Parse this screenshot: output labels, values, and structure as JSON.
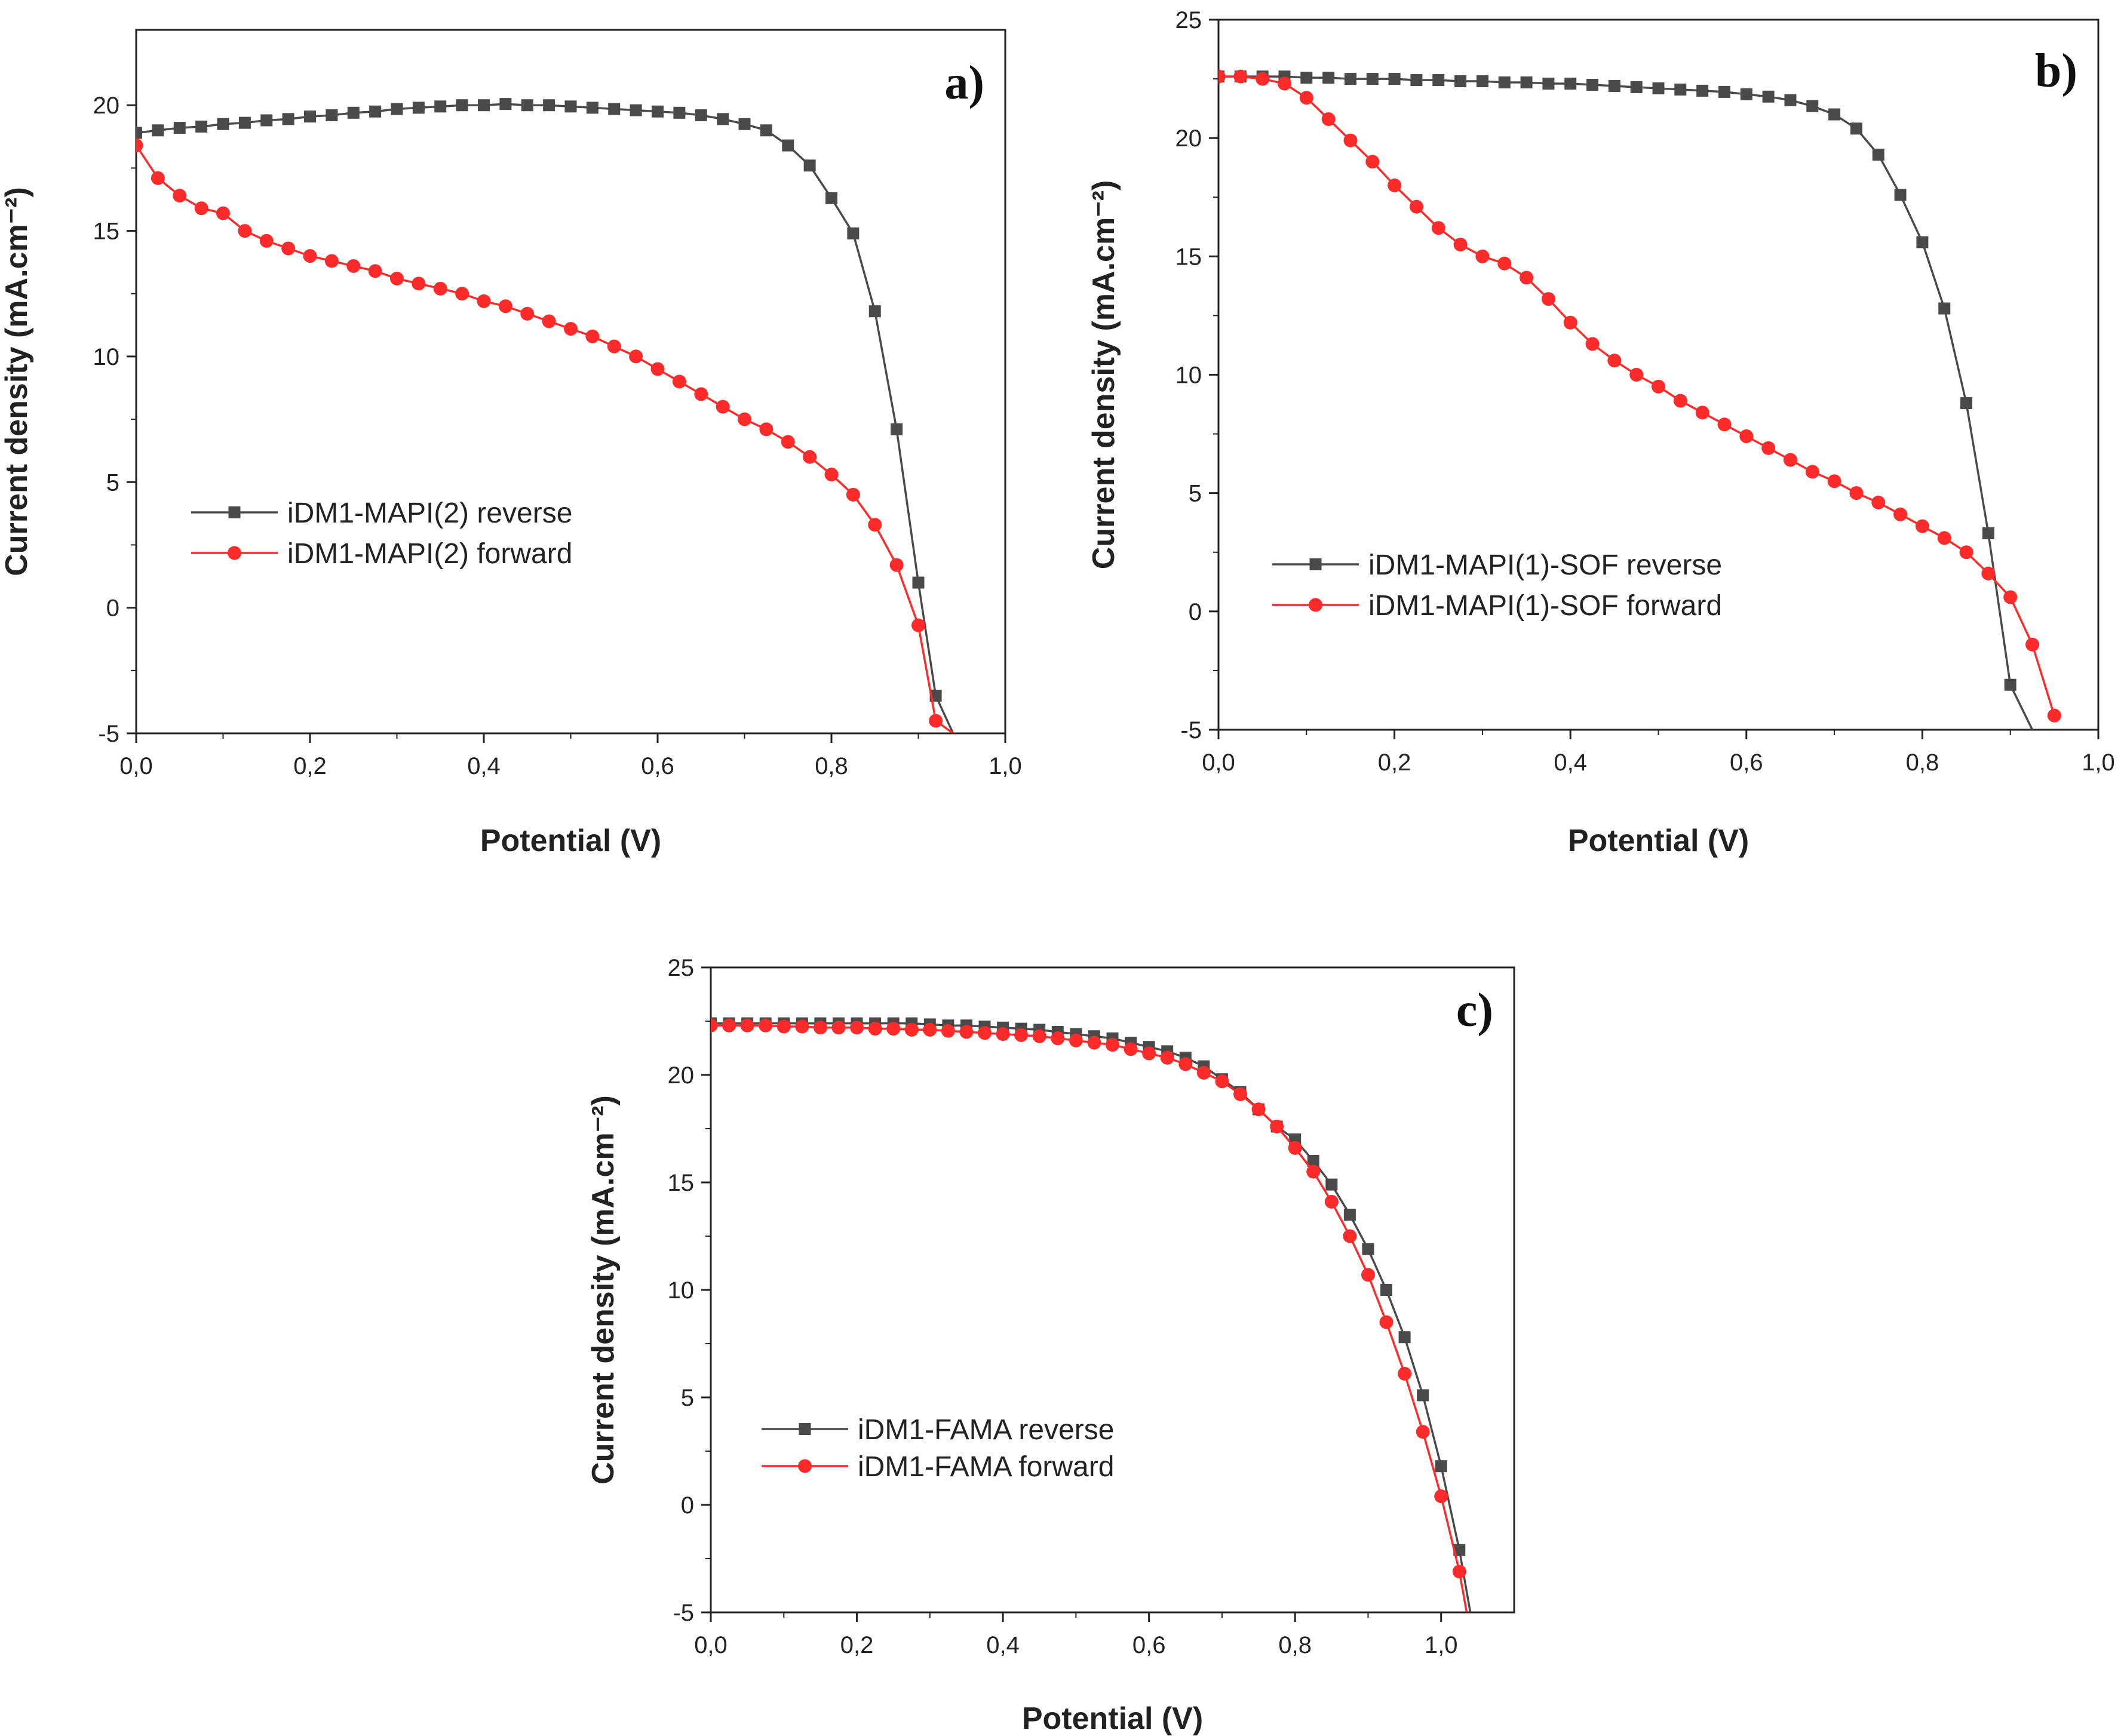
{
  "figure": {
    "colors": {
      "reverse": "#4a4a4a",
      "forward": "#ff2a2a",
      "axis": "#222222"
    },
    "markers": {
      "reverse": "square",
      "forward": "circle"
    }
  },
  "chart_data": [
    {
      "type": "line",
      "panel": "a)",
      "xlabel": "Potential (V)",
      "ylabel": "Current density (mA.cm⁻²)",
      "xlim": [
        0,
        1.0
      ],
      "ylim": [
        -5,
        23
      ],
      "xticks": [
        0,
        0.2,
        0.4,
        0.6,
        0.8,
        1.0
      ],
      "xtick_labels": [
        "0,0",
        "0,2",
        "0,4",
        "0,6",
        "0,8",
        "1,0"
      ],
      "yticks": [
        -5,
        0,
        5,
        10,
        15,
        20
      ],
      "ytick_labels": [
        "-5",
        "0",
        "5",
        "10",
        "15",
        "20"
      ],
      "legend_position": "left",
      "series": [
        {
          "name": "iDM1-MAPI(2) reverse",
          "marker": "square",
          "x": [
            0.0,
            0.025,
            0.05,
            0.075,
            0.1,
            0.125,
            0.15,
            0.175,
            0.2,
            0.225,
            0.25,
            0.275,
            0.3,
            0.325,
            0.35,
            0.375,
            0.4,
            0.425,
            0.45,
            0.475,
            0.5,
            0.525,
            0.55,
            0.575,
            0.6,
            0.625,
            0.65,
            0.675,
            0.7,
            0.725,
            0.75,
            0.775,
            0.8,
            0.825,
            0.85,
            0.875,
            0.9,
            0.92,
            0.94
          ],
          "y": [
            18.9,
            19.0,
            19.1,
            19.15,
            19.25,
            19.3,
            19.4,
            19.45,
            19.55,
            19.6,
            19.7,
            19.75,
            19.85,
            19.9,
            19.95,
            20.0,
            20.0,
            20.05,
            20.0,
            20.0,
            19.95,
            19.9,
            19.85,
            19.8,
            19.75,
            19.7,
            19.6,
            19.45,
            19.25,
            19.0,
            18.4,
            17.6,
            16.3,
            14.9,
            11.8,
            7.1,
            1.0,
            -3.5,
            -5.0
          ]
        },
        {
          "name": "iDM1-MAPI(2) forward",
          "marker": "circle",
          "x": [
            0.0,
            0.025,
            0.05,
            0.075,
            0.1,
            0.125,
            0.15,
            0.175,
            0.2,
            0.225,
            0.25,
            0.275,
            0.3,
            0.325,
            0.35,
            0.375,
            0.4,
            0.425,
            0.45,
            0.475,
            0.5,
            0.525,
            0.55,
            0.575,
            0.6,
            0.625,
            0.65,
            0.675,
            0.7,
            0.725,
            0.75,
            0.775,
            0.8,
            0.825,
            0.85,
            0.875,
            0.9,
            0.92,
            0.94
          ],
          "y": [
            18.4,
            17.1,
            16.4,
            15.9,
            15.7,
            15.0,
            14.6,
            14.3,
            14.0,
            13.8,
            13.6,
            13.4,
            13.1,
            12.9,
            12.7,
            12.5,
            12.2,
            12.0,
            11.7,
            11.4,
            11.1,
            10.8,
            10.4,
            10.0,
            9.5,
            9.0,
            8.5,
            8.0,
            7.5,
            7.1,
            6.6,
            6.0,
            5.3,
            4.5,
            3.3,
            1.7,
            -0.7,
            -4.5,
            -5.0
          ]
        }
      ]
    },
    {
      "type": "line",
      "panel": "b)",
      "xlabel": "Potential (V)",
      "ylabel": "Current density (mA.cm⁻²)",
      "xlim": [
        0,
        1.0
      ],
      "ylim": [
        -5,
        25
      ],
      "xticks": [
        0,
        0.2,
        0.4,
        0.6,
        0.8,
        1.0
      ],
      "xtick_labels": [
        "0,0",
        "0,2",
        "0,4",
        "0,6",
        "0,8",
        "1,0"
      ],
      "yticks": [
        -5,
        0,
        5,
        10,
        15,
        20,
        25
      ],
      "ytick_labels": [
        "-5",
        "0",
        "5",
        "10",
        "15",
        "20",
        "25"
      ],
      "legend_position": "bottom-left",
      "series": [
        {
          "name": "iDM1-MAPI(1)-SOF reverse",
          "marker": "square",
          "x": [
            0.0,
            0.025,
            0.05,
            0.075,
            0.1,
            0.125,
            0.15,
            0.175,
            0.2,
            0.225,
            0.25,
            0.275,
            0.3,
            0.325,
            0.35,
            0.375,
            0.4,
            0.425,
            0.45,
            0.475,
            0.5,
            0.525,
            0.55,
            0.575,
            0.6,
            0.625,
            0.65,
            0.675,
            0.7,
            0.725,
            0.75,
            0.775,
            0.8,
            0.825,
            0.85,
            0.875,
            0.9,
            0.925
          ],
          "y": [
            22.6,
            22.6,
            22.6,
            22.6,
            22.55,
            22.55,
            22.5,
            22.5,
            22.5,
            22.45,
            22.45,
            22.4,
            22.4,
            22.35,
            22.35,
            22.3,
            22.3,
            22.25,
            22.2,
            22.15,
            22.1,
            22.05,
            22.0,
            21.95,
            21.85,
            21.75,
            21.6,
            21.35,
            21.0,
            20.4,
            19.3,
            17.6,
            15.6,
            12.8,
            8.8,
            3.3,
            -3.1,
            -5.0
          ]
        },
        {
          "name": "iDM1-MAPI(1)-SOF forward",
          "marker": "circle",
          "x": [
            0.0,
            0.025,
            0.05,
            0.075,
            0.1,
            0.125,
            0.15,
            0.175,
            0.2,
            0.225,
            0.25,
            0.275,
            0.3,
            0.325,
            0.35,
            0.375,
            0.4,
            0.425,
            0.45,
            0.475,
            0.5,
            0.525,
            0.55,
            0.575,
            0.6,
            0.625,
            0.65,
            0.675,
            0.7,
            0.725,
            0.75,
            0.775,
            0.8,
            0.825,
            0.85,
            0.875,
            0.9,
            0.925,
            0.95
          ],
          "y": [
            22.6,
            22.6,
            22.5,
            22.3,
            21.7,
            20.8,
            19.9,
            19.0,
            18.0,
            17.1,
            16.2,
            15.5,
            15.0,
            14.7,
            14.1,
            13.2,
            12.2,
            11.3,
            10.6,
            10.0,
            9.5,
            8.9,
            8.4,
            7.9,
            7.4,
            6.9,
            6.4,
            5.9,
            5.5,
            5.0,
            4.6,
            4.1,
            3.6,
            3.1,
            2.5,
            1.6,
            0.6,
            -1.4,
            -4.4
          ]
        }
      ]
    },
    {
      "type": "line",
      "panel": "c)",
      "xlabel": "Potential (V)",
      "ylabel": "Current density (mA.cm⁻²)",
      "xlim": [
        0,
        1.1
      ],
      "ylim": [
        -5,
        25
      ],
      "xticks": [
        0,
        0.2,
        0.4,
        0.6,
        0.8,
        1.0
      ],
      "xtick_labels": [
        "0,0",
        "0,2",
        "0,4",
        "0,6",
        "0,8",
        "1,0"
      ],
      "yticks": [
        -5,
        0,
        5,
        10,
        15,
        20,
        25
      ],
      "ytick_labels": [
        "-5",
        "0",
        "5",
        "10",
        "15",
        "20",
        "25"
      ],
      "legend_position": "bottom-left",
      "series": [
        {
          "name": "iDM1-FAMA reverse",
          "marker": "square",
          "x": [
            0.0,
            0.025,
            0.05,
            0.075,
            0.1,
            0.125,
            0.15,
            0.175,
            0.2,
            0.225,
            0.25,
            0.275,
            0.3,
            0.325,
            0.35,
            0.375,
            0.4,
            0.425,
            0.45,
            0.475,
            0.5,
            0.525,
            0.55,
            0.575,
            0.6,
            0.625,
            0.65,
            0.675,
            0.7,
            0.725,
            0.75,
            0.775,
            0.8,
            0.825,
            0.85,
            0.875,
            0.9,
            0.925,
            0.95,
            0.975,
            1.0,
            1.025,
            1.04
          ],
          "y": [
            22.4,
            22.4,
            22.4,
            22.4,
            22.4,
            22.4,
            22.4,
            22.4,
            22.4,
            22.4,
            22.4,
            22.4,
            22.35,
            22.3,
            22.3,
            22.25,
            22.2,
            22.15,
            22.1,
            22.0,
            21.9,
            21.8,
            21.7,
            21.5,
            21.3,
            21.1,
            20.8,
            20.4,
            19.8,
            19.2,
            18.4,
            17.6,
            17.0,
            16.0,
            14.9,
            13.5,
            11.9,
            10.0,
            7.8,
            5.1,
            1.8,
            -2.1,
            -5.0
          ]
        },
        {
          "name": "iDM1-FAMA forward",
          "marker": "circle",
          "x": [
            0.0,
            0.025,
            0.05,
            0.075,
            0.1,
            0.125,
            0.15,
            0.175,
            0.2,
            0.225,
            0.25,
            0.275,
            0.3,
            0.325,
            0.35,
            0.375,
            0.4,
            0.425,
            0.45,
            0.475,
            0.5,
            0.525,
            0.55,
            0.575,
            0.6,
            0.625,
            0.65,
            0.675,
            0.7,
            0.725,
            0.75,
            0.775,
            0.8,
            0.825,
            0.85,
            0.875,
            0.9,
            0.925,
            0.95,
            0.975,
            1.0,
            1.025,
            1.035
          ],
          "y": [
            22.3,
            22.3,
            22.3,
            22.3,
            22.25,
            22.25,
            22.2,
            22.2,
            22.2,
            22.15,
            22.15,
            22.1,
            22.1,
            22.05,
            22.0,
            21.95,
            21.9,
            21.85,
            21.8,
            21.7,
            21.6,
            21.5,
            21.4,
            21.2,
            21.0,
            20.8,
            20.5,
            20.1,
            19.7,
            19.1,
            18.4,
            17.6,
            16.6,
            15.5,
            14.1,
            12.5,
            10.7,
            8.5,
            6.1,
            3.4,
            0.4,
            -3.1,
            -5.0
          ]
        }
      ]
    }
  ]
}
